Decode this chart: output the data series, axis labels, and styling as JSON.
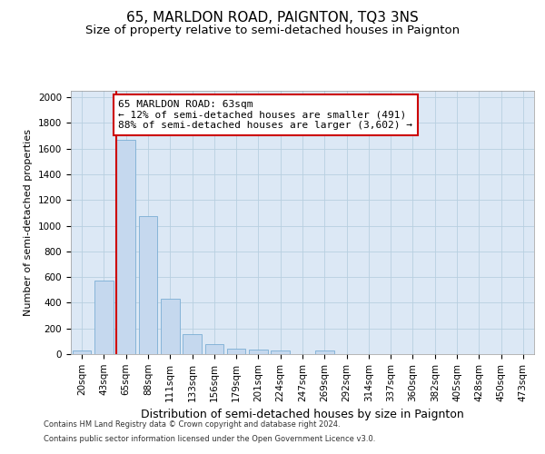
{
  "title": "65, MARLDON ROAD, PAIGNTON, TQ3 3NS",
  "subtitle": "Size of property relative to semi-detached houses in Paignton",
  "xlabel": "Distribution of semi-detached houses by size in Paignton",
  "ylabel": "Number of semi-detached properties",
  "categories": [
    "20sqm",
    "43sqm",
    "65sqm",
    "88sqm",
    "111sqm",
    "133sqm",
    "156sqm",
    "179sqm",
    "201sqm",
    "224sqm",
    "247sqm",
    "269sqm",
    "292sqm",
    "314sqm",
    "337sqm",
    "360sqm",
    "382sqm",
    "405sqm",
    "428sqm",
    "450sqm",
    "473sqm"
  ],
  "values": [
    30,
    570,
    1670,
    1075,
    430,
    155,
    80,
    40,
    35,
    25,
    0,
    30,
    0,
    0,
    0,
    0,
    0,
    0,
    0,
    0,
    0
  ],
  "bar_color": "#c5d8ee",
  "bar_edge_color": "#7aadd4",
  "marker_index": 2,
  "marker_color": "#cc0000",
  "annotation_text": "65 MARLDON ROAD: 63sqm\n← 12% of semi-detached houses are smaller (491)\n88% of semi-detached houses are larger (3,602) →",
  "annotation_box_color": "#ffffff",
  "annotation_box_edge_color": "#cc0000",
  "ylim": [
    0,
    2050
  ],
  "yticks": [
    0,
    200,
    400,
    600,
    800,
    1000,
    1200,
    1400,
    1600,
    1800,
    2000
  ],
  "footnote1": "Contains HM Land Registry data © Crown copyright and database right 2024.",
  "footnote2": "Contains public sector information licensed under the Open Government Licence v3.0.",
  "bg_color": "#ffffff",
  "plot_bg_color": "#dce8f5",
  "grid_color": "#b8cfe0",
  "title_fontsize": 11,
  "subtitle_fontsize": 9.5,
  "xlabel_fontsize": 9,
  "ylabel_fontsize": 8,
  "tick_fontsize": 7.5,
  "annotation_fontsize": 8,
  "footnote_fontsize": 6
}
